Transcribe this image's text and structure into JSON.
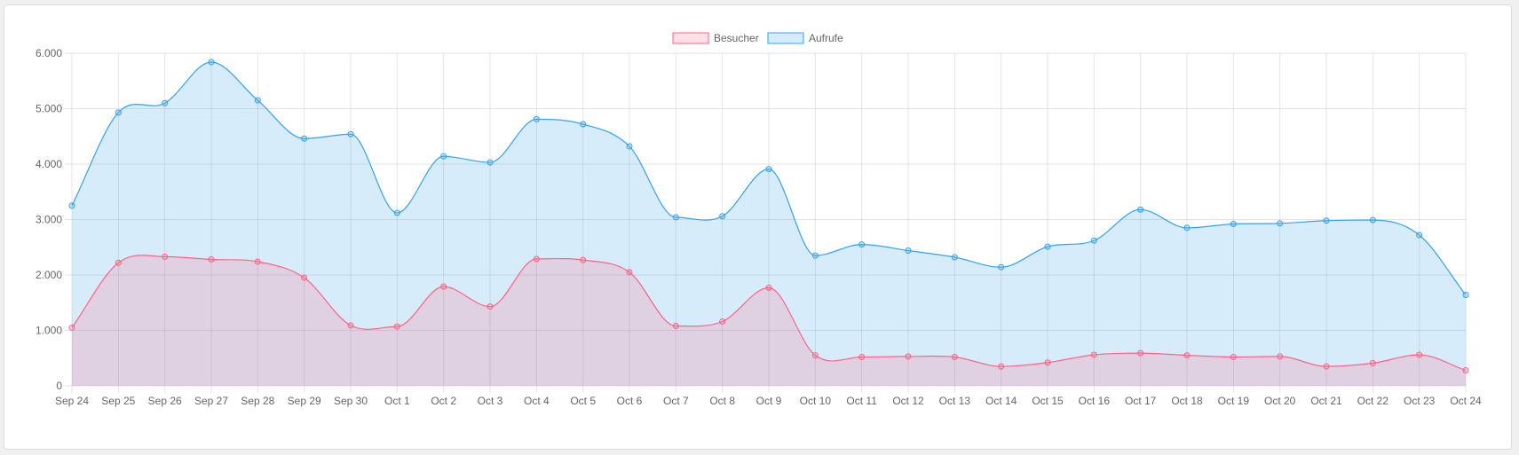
{
  "chart_data": {
    "type": "area",
    "categories": [
      "Sep 24",
      "Sep 25",
      "Sep 26",
      "Sep 27",
      "Sep 28",
      "Sep 29",
      "Sep 30",
      "Oct 1",
      "Oct 2",
      "Oct 3",
      "Oct 4",
      "Oct 5",
      "Oct 6",
      "Oct 7",
      "Oct 8",
      "Oct 9",
      "Oct 10",
      "Oct 11",
      "Oct 12",
      "Oct 13",
      "Oct 14",
      "Oct 15",
      "Oct 16",
      "Oct 17",
      "Oct 18",
      "Oct 19",
      "Oct 20",
      "Oct 21",
      "Oct 22",
      "Oct 23",
      "Oct 24"
    ],
    "ylim": [
      0,
      6000
    ],
    "yticks": [
      {
        "value": 0,
        "label": "0"
      },
      {
        "value": 1000,
        "label": "1.000"
      },
      {
        "value": 2000,
        "label": "2.000"
      },
      {
        "value": 3000,
        "label": "3.000"
      },
      {
        "value": 4000,
        "label": "4.000"
      },
      {
        "value": 5000,
        "label": "5.000"
      },
      {
        "value": 6000,
        "label": "6.000"
      }
    ],
    "grid": true,
    "legend_position": "top",
    "series": [
      {
        "name": "Aufrufe",
        "color": "#36a2eb",
        "fill": "rgba(54,162,235,0.2)",
        "values": [
          3250,
          4930,
          5100,
          5840,
          5150,
          4460,
          4540,
          3120,
          4140,
          4030,
          4810,
          4720,
          4320,
          3040,
          3060,
          3910,
          2350,
          2550,
          2440,
          2320,
          2140,
          2510,
          2620,
          3180,
          2850,
          2920,
          2930,
          2980,
          2990,
          2720,
          1640
        ]
      },
      {
        "name": "Besucher",
        "color": "#ff6384",
        "fill": "rgba(255,99,132,0.2)",
        "values": [
          1050,
          2220,
          2330,
          2280,
          2240,
          1950,
          1090,
          1070,
          1790,
          1430,
          2290,
          2270,
          2050,
          1080,
          1160,
          1770,
          550,
          520,
          530,
          520,
          350,
          420,
          560,
          590,
          550,
          520,
          530,
          350,
          410,
          560,
          280
        ]
      }
    ],
    "legend": [
      "Besucher",
      "Aufrufe"
    ]
  }
}
